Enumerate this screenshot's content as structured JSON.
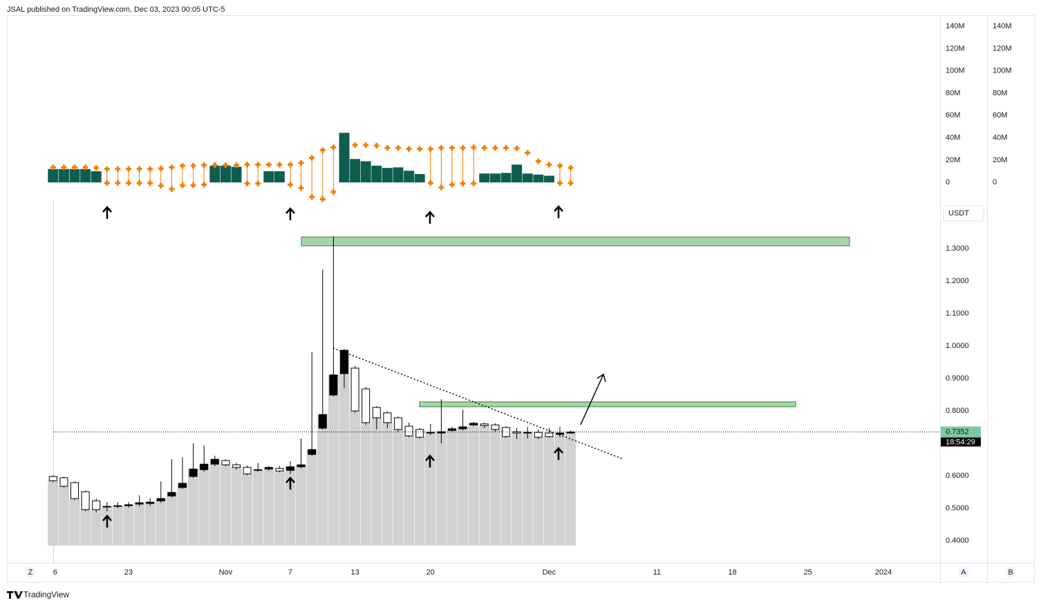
{
  "header": {
    "text": "JSAL published on TradingView.com, Dec 03, 2023 00:05 UTC-5"
  },
  "footer": {
    "brand": "TradingView"
  },
  "buttons": [
    "Z",
    "A",
    "B"
  ],
  "chart_data": {
    "type": "candlestick",
    "currency": "USDT",
    "countdown": "18:54:29",
    "categories": [
      "6",
      null,
      null,
      null,
      null,
      null,
      null,
      "23",
      null,
      null,
      null,
      null,
      null,
      null,
      null,
      null,
      "Nov",
      null,
      null,
      null,
      null,
      null,
      "7",
      null,
      null,
      null,
      null,
      null,
      "13",
      null,
      null,
      null,
      null,
      null,
      null,
      "20",
      null,
      null,
      null,
      null,
      null,
      null,
      null,
      null,
      null,
      null,
      "Dec",
      null,
      null,
      null,
      null,
      null,
      null,
      null,
      null,
      null,
      "11",
      null,
      null,
      null,
      null,
      null,
      null,
      "18",
      null,
      null,
      null,
      null,
      null,
      null,
      "25",
      null,
      null,
      null,
      null,
      null,
      null,
      "2024"
    ],
    "ylim": [
      0.332,
      1.445
    ],
    "yticks": [
      {
        "value": 1.3,
        "label": "1.3000"
      },
      {
        "value": 1.2,
        "label": "1.2000"
      },
      {
        "value": 1.1,
        "label": "1.1000"
      },
      {
        "value": 1.0,
        "label": "1.0000"
      },
      {
        "value": 0.9,
        "label": "0.9000"
      },
      {
        "value": 0.8,
        "label": "0.8000"
      },
      {
        "value": 0.6,
        "label": "0.6000"
      },
      {
        "value": 0.5,
        "label": "0.5000"
      },
      {
        "value": 0.4,
        "label": "0.4000"
      }
    ],
    "up_color": "#000000",
    "down_color": "#ffffff",
    "column_color": "#d1d1d1",
    "last_price_color": "#80c9a0",
    "candles": [
      {
        "o": 0.598,
        "h": 0.602,
        "l": 0.581,
        "c": 0.585
      },
      {
        "o": 0.594,
        "h": 0.598,
        "l": 0.564,
        "c": 0.568
      },
      {
        "o": 0.579,
        "h": 0.583,
        "l": 0.526,
        "c": 0.53
      },
      {
        "o": 0.551,
        "h": 0.555,
        "l": 0.491,
        "c": 0.496
      },
      {
        "o": 0.523,
        "h": 0.53,
        "l": 0.487,
        "c": 0.496
      },
      {
        "o": 0.506,
        "h": 0.519,
        "l": 0.491,
        "c": 0.504
      },
      {
        "o": 0.506,
        "h": 0.519,
        "l": 0.5,
        "c": 0.508
      },
      {
        "o": 0.508,
        "h": 0.519,
        "l": 0.502,
        "c": 0.511
      },
      {
        "o": 0.513,
        "h": 0.54,
        "l": 0.506,
        "c": 0.517
      },
      {
        "o": 0.515,
        "h": 0.53,
        "l": 0.508,
        "c": 0.519
      },
      {
        "o": 0.523,
        "h": 0.583,
        "l": 0.517,
        "c": 0.53
      },
      {
        "o": 0.538,
        "h": 0.651,
        "l": 0.534,
        "c": 0.549
      },
      {
        "o": 0.564,
        "h": 0.657,
        "l": 0.56,
        "c": 0.577
      },
      {
        "o": 0.598,
        "h": 0.7,
        "l": 0.594,
        "c": 0.621
      },
      {
        "o": 0.619,
        "h": 0.694,
        "l": 0.613,
        "c": 0.636
      },
      {
        "o": 0.636,
        "h": 0.662,
        "l": 0.63,
        "c": 0.651
      },
      {
        "o": 0.647,
        "h": 0.651,
        "l": 0.63,
        "c": 0.634
      },
      {
        "o": 0.634,
        "h": 0.64,
        "l": 0.619,
        "c": 0.626
      },
      {
        "o": 0.626,
        "h": 0.632,
        "l": 0.602,
        "c": 0.606
      },
      {
        "o": 0.617,
        "h": 0.64,
        "l": 0.613,
        "c": 0.619
      },
      {
        "o": 0.621,
        "h": 0.63,
        "l": 0.615,
        "c": 0.626
      },
      {
        "o": 0.623,
        "h": 0.63,
        "l": 0.611,
        "c": 0.615
      },
      {
        "o": 0.617,
        "h": 0.645,
        "l": 0.606,
        "c": 0.628
      },
      {
        "o": 0.628,
        "h": 0.715,
        "l": 0.623,
        "c": 0.634
      },
      {
        "o": 0.666,
        "h": 0.981,
        "l": 0.662,
        "c": 0.681
      },
      {
        "o": 0.747,
        "h": 1.236,
        "l": 0.743,
        "c": 0.789
      },
      {
        "o": 0.849,
        "h": 1.338,
        "l": 0.845,
        "c": 0.911
      },
      {
        "o": 0.915,
        "h": 0.991,
        "l": 0.87,
        "c": 0.987
      },
      {
        "o": 0.932,
        "h": 0.938,
        "l": 0.794,
        "c": 0.8
      },
      {
        "o": 0.868,
        "h": 0.874,
        "l": 0.757,
        "c": 0.764
      },
      {
        "o": 0.811,
        "h": 0.815,
        "l": 0.743,
        "c": 0.779
      },
      {
        "o": 0.794,
        "h": 0.798,
        "l": 0.747,
        "c": 0.764
      },
      {
        "o": 0.779,
        "h": 0.783,
        "l": 0.736,
        "c": 0.743
      },
      {
        "o": 0.753,
        "h": 0.764,
        "l": 0.719,
        "c": 0.723
      },
      {
        "o": 0.743,
        "h": 0.747,
        "l": 0.715,
        "c": 0.719
      },
      {
        "o": 0.732,
        "h": 0.76,
        "l": 0.726,
        "c": 0.734
      },
      {
        "o": 0.732,
        "h": 0.836,
        "l": 0.7,
        "c": 0.736
      },
      {
        "o": 0.74,
        "h": 0.751,
        "l": 0.736,
        "c": 0.745
      },
      {
        "o": 0.745,
        "h": 0.804,
        "l": 0.74,
        "c": 0.751
      },
      {
        "o": 0.757,
        "h": 0.766,
        "l": 0.753,
        "c": 0.762
      },
      {
        "o": 0.76,
        "h": 0.764,
        "l": 0.747,
        "c": 0.755
      },
      {
        "o": 0.757,
        "h": 0.762,
        "l": 0.736,
        "c": 0.743
      },
      {
        "o": 0.749,
        "h": 0.753,
        "l": 0.717,
        "c": 0.721
      },
      {
        "o": 0.736,
        "h": 0.747,
        "l": 0.713,
        "c": 0.732
      },
      {
        "o": 0.734,
        "h": 0.751,
        "l": 0.715,
        "c": 0.732
      },
      {
        "o": 0.734,
        "h": 0.743,
        "l": 0.713,
        "c": 0.719
      },
      {
        "o": 0.732,
        "h": 0.747,
        "l": 0.717,
        "c": 0.721
      },
      {
        "o": 0.728,
        "h": 0.751,
        "l": 0.719,
        "c": 0.732
      },
      {
        "o": 0.732,
        "h": 0.74,
        "l": 0.73,
        "c": 0.7352
      }
    ],
    "zones": [
      {
        "top": 1.336,
        "bottom": 1.309,
        "color": "#a5d6a7"
      },
      {
        "top": 0.828,
        "bottom": 0.813,
        "color": "#a5d6a7"
      }
    ],
    "indicator": {
      "type": "bar",
      "ylim": [
        -16000000,
        150000000
      ],
      "yticks": [
        {
          "value": 140000000,
          "label": "140M"
        },
        {
          "value": 120000000,
          "label": "120M"
        },
        {
          "value": 100000000,
          "label": "100M"
        },
        {
          "value": 80000000,
          "label": "80M"
        },
        {
          "value": 60000000,
          "label": "60M"
        },
        {
          "value": 40000000,
          "label": "40M"
        },
        {
          "value": 20000000,
          "label": "20M"
        },
        0
      ],
      "volume": {
        "color": "#0e5e4f",
        "values": [
          12000000,
          12000000,
          12000000,
          12000000,
          10000000,
          null,
          null,
          null,
          null,
          null,
          null,
          null,
          null,
          null,
          null,
          15000000,
          15000000,
          14000000,
          null,
          null,
          10000000,
          10000000,
          null,
          null,
          null,
          null,
          null,
          44500000,
          21000000,
          19000000,
          15000000,
          13000000,
          13500000,
          10500000,
          7500000,
          null,
          null,
          null,
          null,
          null,
          8000000,
          8000000,
          8500000,
          16000000,
          8000000,
          7000000,
          6000000,
          null,
          null
        ]
      },
      "upper": {
        "color": "#f57c00",
        "values": [
          13500000,
          13500000,
          13500000,
          13500000,
          13000000,
          12000000,
          12000000,
          12000000,
          12000000,
          12000000,
          12500000,
          13500000,
          15000000,
          15000000,
          15500000,
          15500000,
          15500000,
          15500000,
          16000000,
          16000000,
          16000000,
          16000000,
          16000000,
          17500000,
          22000000,
          29000000,
          31500000,
          null,
          33500000,
          33500000,
          33000000,
          31000000,
          31000000,
          30000000,
          30000000,
          30000000,
          31000000,
          31000000,
          31000000,
          31500000,
          31000000,
          31000000,
          31000000,
          30500000,
          26500000,
          19000000,
          16000000,
          15000000,
          13000000
        ]
      },
      "lower": {
        "color": "#f57c00",
        "values": [
          null,
          null,
          null,
          null,
          null,
          -500000,
          -500000,
          -500000,
          -500000,
          -500000,
          -3000000,
          -6000000,
          -2500000,
          -2500000,
          -2000000,
          null,
          null,
          null,
          -1000000,
          -1000000,
          null,
          null,
          -2000000,
          -5000000,
          -13000000,
          -15000000,
          -8500000,
          null,
          null,
          null,
          null,
          null,
          null,
          null,
          null,
          -500000,
          -4500000,
          -2000000,
          -1000000,
          -1000000,
          null,
          null,
          null,
          null,
          null,
          null,
          null,
          -500000,
          -500000
        ]
      }
    }
  }
}
